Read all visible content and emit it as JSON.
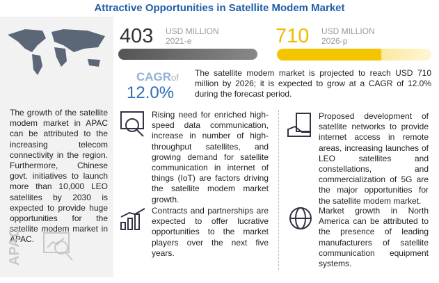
{
  "header": {
    "title": "Attractive Opportunities in Satellite Modem Market"
  },
  "market": {
    "start": {
      "value": "403",
      "unit": "USD MILLION",
      "year": "2021-e"
    },
    "end": {
      "value": "710",
      "unit": "USD MILLION",
      "year": "2026-p"
    }
  },
  "cagr": {
    "label": "CAGR",
    "of": "of",
    "value": "12.0%",
    "text": "The satellite modem market is projected to reach USD 710 million by 2026; it is expected to grow at a CAGR of 12.0% during the forecast period."
  },
  "sidebar": {
    "text": "The growth of the satellite modem market in APAC can be attributed to the increasing telecom connectivity in the region. Furthermore, Chinese govt. initiatives to launch more than 10,000 LEO satellites by 2030 is expected to provide huge opportunities for the satellite modem market in APAC.",
    "region": "APAC"
  },
  "cards": [
    {
      "text": "Rising need for enriched high-speed data communication, increase in number of high-throughput satellites, and growing demand for satellite communication in internet of things (IoT) are factors driving the satellite modem market growth."
    },
    {
      "text": "Proposed development of satellite networks to provide internet access in remote areas, increasing launches of LEO satellites and constellations, and commercialization of 5G are the major opportunities for the satellite modem market."
    },
    {
      "text": "Contracts and partnerships are expected to offer lucrative opportunities to the market players over the next five years."
    },
    {
      "text": "Market growth in North America can be attributed to the presence of leading manufacturers of satellite communication equipment systems."
    }
  ]
}
